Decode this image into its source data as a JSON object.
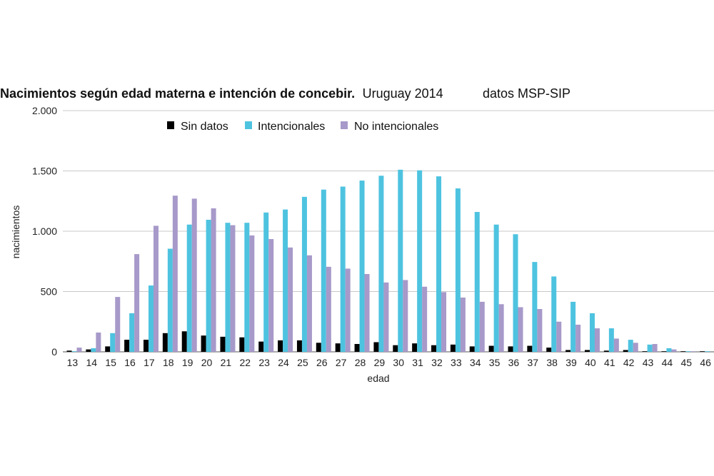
{
  "chart_data": {
    "type": "bar",
    "title": "Nacimientos según edad materna e intención de concebir.",
    "subtitle": "Uruguay 2014",
    "source": "datos MSP-SIP",
    "xlabel": "edad",
    "ylabel": "nacimientos",
    "ylim": [
      0,
      2000
    ],
    "yticks": [
      0,
      500,
      1000,
      1500,
      2000
    ],
    "ytick_labels": [
      "0",
      "500",
      "1.000",
      "1.500",
      "2.000"
    ],
    "grid": true,
    "legend_position": "top",
    "categories": [
      "13",
      "14",
      "15",
      "16",
      "17",
      "18",
      "19",
      "20",
      "21",
      "22",
      "23",
      "24",
      "25",
      "26",
      "27",
      "28",
      "29",
      "30",
      "31",
      "32",
      "33",
      "34",
      "35",
      "36",
      "37",
      "38",
      "39",
      "40",
      "41",
      "42",
      "43",
      "44",
      "45",
      "46"
    ],
    "series": [
      {
        "name": "Sin datos",
        "color": "#000000",
        "values": [
          10,
          20,
          45,
          100,
          100,
          155,
          170,
          135,
          125,
          120,
          85,
          95,
          95,
          75,
          70,
          65,
          80,
          55,
          70,
          55,
          60,
          45,
          50,
          45,
          50,
          35,
          15,
          15,
          10,
          15,
          5,
          5,
          5,
          5
        ]
      },
      {
        "name": "Intencionales",
        "color": "#4ec3e0",
        "values": [
          5,
          30,
          155,
          320,
          550,
          855,
          1055,
          1095,
          1070,
          1070,
          1155,
          1180,
          1285,
          1345,
          1370,
          1420,
          1460,
          1510,
          1505,
          1455,
          1355,
          1160,
          1055,
          975,
          745,
          625,
          415,
          320,
          195,
          100,
          60,
          30,
          5,
          5
        ]
      },
      {
        "name": "No intencionales",
        "color": "#a799c9",
        "values": [
          35,
          160,
          455,
          810,
          1045,
          1295,
          1270,
          1190,
          1050,
          965,
          935,
          865,
          800,
          705,
          690,
          645,
          575,
          595,
          540,
          495,
          450,
          415,
          395,
          370,
          355,
          250,
          225,
          195,
          110,
          75,
          65,
          20,
          5,
          0
        ]
      }
    ]
  }
}
